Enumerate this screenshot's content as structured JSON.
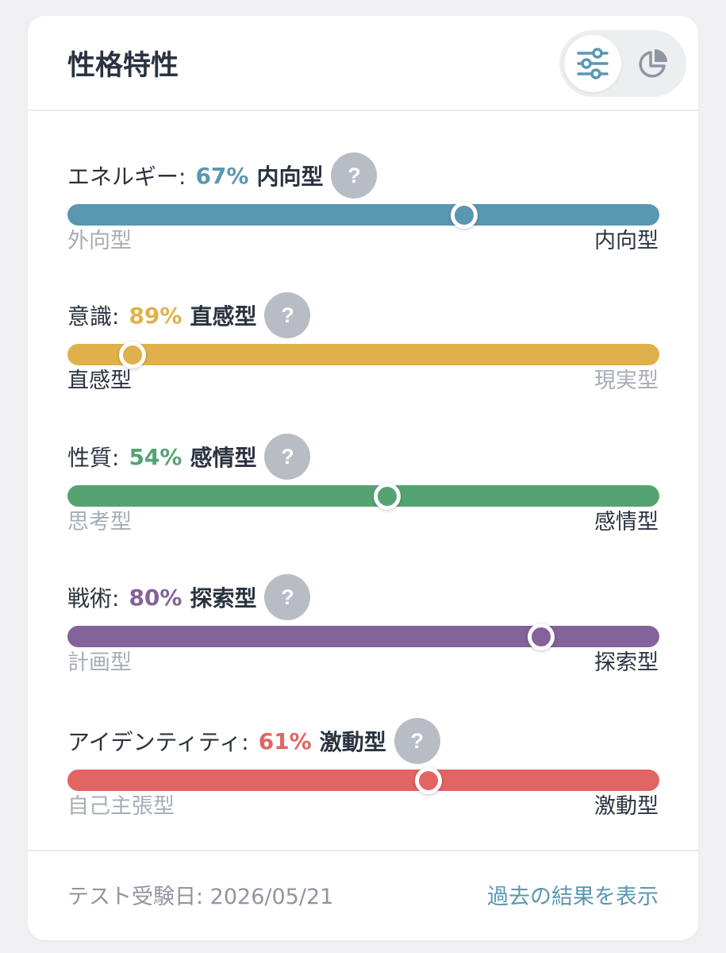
{
  "header": {
    "title": "性格特性",
    "view_toggle": [
      {
        "icon": "sliders-icon",
        "active": true,
        "color": "#5a97b0"
      },
      {
        "icon": "pie-chart-icon",
        "active": false,
        "color": "#8f95a0"
      }
    ]
  },
  "help_label": "?",
  "traits": [
    {
      "label": "エネルギー:",
      "percent": "67%",
      "type": "内向型",
      "left_pole": "外向型",
      "right_pole": "内向型",
      "color": "#5a97b0",
      "marker_position": 0.67,
      "highlight": "right"
    },
    {
      "label": "意識:",
      "percent": "89%",
      "type": "直感型",
      "left_pole": "直感型",
      "right_pole": "現実型",
      "color": "#e0b14b",
      "marker_position": 0.11,
      "highlight": "left"
    },
    {
      "label": "性質:",
      "percent": "54%",
      "type": "感情型",
      "left_pole": "思考型",
      "right_pole": "感情型",
      "color": "#55a372",
      "marker_position": 0.54,
      "highlight": "right"
    },
    {
      "label": "戦術:",
      "percent": "80%",
      "type": "探索型",
      "left_pole": "計画型",
      "right_pole": "探索型",
      "color": "#84629a",
      "marker_position": 0.8,
      "highlight": "right"
    },
    {
      "label": "アイデンティティ:",
      "percent": "61%",
      "type": "激動型",
      "left_pole": "自己主張型",
      "right_pole": "激動型",
      "color": "#e06563",
      "marker_position": 0.61,
      "highlight": "right"
    }
  ],
  "footer": {
    "test_date": "テスト受験日: 2026/05/21",
    "history_link": "過去の結果を表示"
  }
}
